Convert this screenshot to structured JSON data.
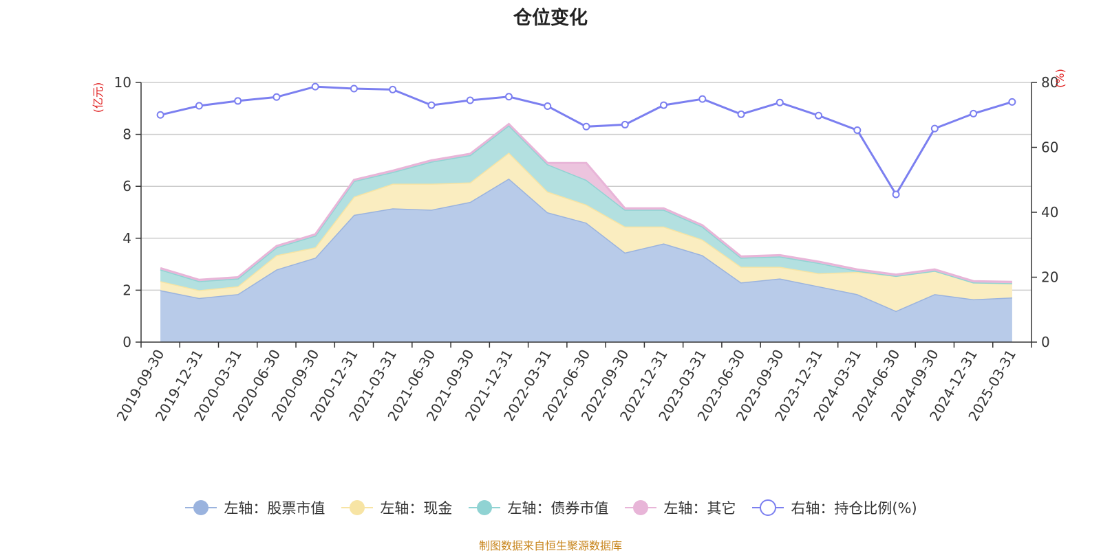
{
  "chart_data": {
    "type": "area",
    "title": "仓位变化",
    "y_left_unit": "(亿元)",
    "y_right_unit": "(%)",
    "ylim_left": [
      0,
      10
    ],
    "ylim_right": [
      0,
      80
    ],
    "yticks_left": [
      "0",
      "2",
      "4",
      "6",
      "8",
      "10"
    ],
    "yticks_right": [
      "0",
      "20",
      "40",
      "60",
      "80"
    ],
    "grid": true,
    "legend_position": "bottom",
    "categories": [
      "2019-09-30",
      "2019-12-31",
      "2020-03-31",
      "2020-06-30",
      "2020-09-30",
      "2020-12-31",
      "2021-03-31",
      "2021-06-30",
      "2021-09-30",
      "2021-12-31",
      "2022-03-31",
      "2022-06-30",
      "2022-09-30",
      "2022-12-31",
      "2023-03-31",
      "2023-06-30",
      "2023-09-30",
      "2023-12-31",
      "2024-03-31",
      "2024-06-30",
      "2024-09-30",
      "2024-12-31",
      "2025-03-31"
    ],
    "series": [
      {
        "name": "左轴：股票市值",
        "axis": "left",
        "kind": "area",
        "color": "#9ab3de",
        "fill": "#b8cbe9",
        "values": [
          2.0,
          1.7,
          1.85,
          2.8,
          3.25,
          4.9,
          5.15,
          5.1,
          5.4,
          6.3,
          5.0,
          4.6,
          3.45,
          3.8,
          3.35,
          2.3,
          2.45,
          2.15,
          1.85,
          1.2,
          1.85,
          1.65,
          1.72
        ]
      },
      {
        "name": "左轴：现金",
        "axis": "left",
        "kind": "area",
        "color": "#f7e4a4",
        "fill": "#faedc0",
        "values": [
          0.35,
          0.3,
          0.3,
          0.55,
          0.4,
          0.7,
          0.95,
          1.0,
          0.75,
          1.0,
          0.8,
          0.7,
          1.0,
          0.65,
          0.6,
          0.6,
          0.45,
          0.5,
          0.85,
          1.35,
          0.9,
          0.65,
          0.55
        ]
      },
      {
        "name": "左轴：债券市值",
        "axis": "left",
        "kind": "area",
        "color": "#90d3d3",
        "fill": "#b3e0e0",
        "values": [
          0.45,
          0.35,
          0.3,
          0.3,
          0.45,
          0.6,
          0.45,
          0.85,
          1.05,
          1.05,
          1.05,
          0.95,
          0.65,
          0.65,
          0.5,
          0.35,
          0.4,
          0.4,
          0.05,
          0.0,
          0.0,
          0.0,
          0.0
        ]
      },
      {
        "name": "左轴：其它",
        "axis": "left",
        "kind": "area",
        "color": "#e8b5d8",
        "fill": "#ecc4de",
        "values": [
          0.05,
          0.05,
          0.05,
          0.05,
          0.05,
          0.05,
          0.05,
          0.05,
          0.05,
          0.05,
          0.05,
          0.65,
          0.05,
          0.05,
          0.05,
          0.05,
          0.05,
          0.05,
          0.05,
          0.05,
          0.05,
          0.05,
          0.05
        ]
      },
      {
        "name": "右轴：持仓比例(%)",
        "axis": "right",
        "kind": "line",
        "color": "#7b7ff0",
        "values": [
          70,
          72.8,
          74.3,
          75.5,
          78.7,
          78.1,
          77.8,
          73,
          74.5,
          75.6,
          72.7,
          66.4,
          67,
          73,
          74.9,
          70.2,
          73.8,
          69.8,
          65.3,
          45.5,
          65.8,
          70.4,
          74
        ]
      }
    ]
  },
  "source_note": "制图数据来自恒生聚源数据库"
}
